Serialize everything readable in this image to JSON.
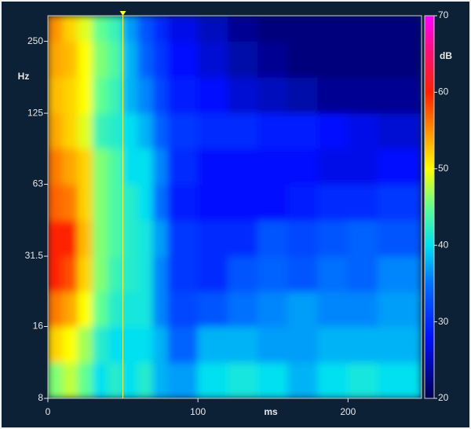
{
  "chart_data": {
    "type": "heatmap",
    "x_label": "ms",
    "y_label": "Hz",
    "z_label": "dB",
    "x_bins": [
      0,
      10,
      20,
      30,
      40,
      50,
      60,
      70,
      80,
      100,
      120,
      140,
      160,
      180,
      200,
      220,
      249
    ],
    "y_bins": [
      8,
      11.3,
      16,
      22.4,
      31.5,
      44.5,
      63,
      89,
      125,
      177,
      250,
      320
    ],
    "z": [
      [
        46,
        48,
        45,
        40,
        42,
        40,
        42,
        38,
        37,
        40,
        41,
        40,
        38,
        40,
        41,
        40
      ],
      [
        52,
        50,
        47,
        42,
        40,
        40,
        40,
        38,
        34,
        38,
        38,
        37,
        37,
        38,
        38,
        38
      ],
      [
        56,
        54,
        50,
        45,
        42,
        41,
        41,
        36,
        32,
        33,
        35,
        36,
        37,
        36,
        36,
        37
      ],
      [
        60,
        58,
        52,
        46,
        43,
        42,
        41,
        36,
        31,
        30,
        33,
        34,
        33,
        35,
        34,
        36
      ],
      [
        60,
        60,
        53,
        46,
        44,
        42,
        41,
        37,
        31,
        30,
        30,
        33,
        32,
        33,
        34,
        33
      ],
      [
        57,
        56,
        52,
        46,
        44,
        42,
        40,
        35,
        29,
        28,
        28,
        28,
        29,
        30,
        30,
        31
      ],
      [
        56,
        54,
        52,
        46,
        44,
        40,
        40,
        36,
        30,
        28,
        28,
        28,
        28,
        27,
        27,
        28
      ],
      [
        54,
        52,
        49,
        43,
        42,
        40,
        38,
        34,
        31,
        30,
        30,
        29,
        29,
        28,
        27,
        26
      ],
      [
        53,
        52,
        50,
        45,
        43,
        38,
        36,
        32,
        29,
        28,
        26,
        25,
        24,
        23,
        23,
        23
      ],
      [
        54,
        53,
        50,
        46,
        44,
        38,
        34,
        31,
        28,
        26,
        24,
        23,
        22,
        22,
        22,
        22
      ],
      [
        55,
        52,
        49,
        45,
        43,
        37,
        33,
        30,
        27,
        25,
        23,
        22,
        22,
        22,
        22,
        22
      ]
    ],
    "xlim": [
      0,
      249
    ],
    "xticks": [
      0,
      100,
      200
    ],
    "ylim": [
      8,
      320
    ],
    "yticks": [
      8,
      16,
      31.5,
      63,
      125,
      250
    ],
    "y_log": true,
    "zlim": [
      20,
      70
    ],
    "zticks": [
      20,
      30,
      40,
      50,
      60,
      70
    ],
    "colorscale": [
      {
        "value": 20,
        "color": "#000050"
      },
      {
        "value": 28,
        "color": "#0010ff"
      },
      {
        "value": 35,
        "color": "#0070ff"
      },
      {
        "value": 40,
        "color": "#00e0f0"
      },
      {
        "value": 45,
        "color": "#60ff90"
      },
      {
        "value": 50,
        "color": "#ffff00"
      },
      {
        "value": 55,
        "color": "#ff9000"
      },
      {
        "value": 60,
        "color": "#ff2000"
      },
      {
        "value": 65,
        "color": "#ff1070"
      },
      {
        "value": 70,
        "color": "#ff00ff"
      }
    ],
    "cursor": 50,
    "cursor_color": "#ffff40"
  }
}
